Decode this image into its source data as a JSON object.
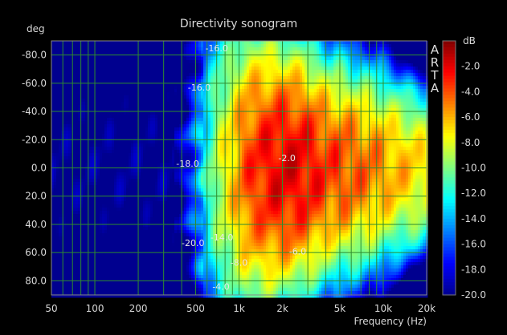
{
  "chart_data": {
    "type": "heatmap",
    "title": "Directivity sonogram",
    "ylabel": "deg",
    "xlabel": "Frequency (Hz)",
    "colorbar_label": "dB",
    "watermark": [
      "A",
      "R",
      "T",
      "A"
    ],
    "x_scale": "log",
    "xlim": [
      50,
      20000
    ],
    "ylim": [
      -90,
      90
    ],
    "y_ticks": [
      "-80.0",
      "-60.0",
      "-40.0",
      "-20.0",
      "0.0",
      "20.0",
      "40.0",
      "60.0",
      "80.0"
    ],
    "y_tick_values": [
      -80,
      -60,
      -40,
      -20,
      0,
      20,
      40,
      60,
      80
    ],
    "x_ticks": [
      "50",
      "100",
      "200",
      "500",
      "1k",
      "2k",
      "5k",
      "10k",
      "20k"
    ],
    "x_tick_values": [
      50,
      100,
      200,
      500,
      1000,
      2000,
      5000,
      10000,
      20000
    ],
    "colorbar_ticks": [
      "-2.0",
      "-4.0",
      "-6.0",
      "-8.0",
      "-10.0",
      "-12.0",
      "-14.0",
      "-16.0",
      "-18.0",
      "-20.0"
    ],
    "colorbar_values": [
      -2,
      -4,
      -6,
      -8,
      -10,
      -12,
      -14,
      -16,
      -18,
      -20
    ],
    "zlim": [
      -20,
      0
    ],
    "colormap": [
      "#00008f",
      "#0000ff",
      "#0080ff",
      "#00ffff",
      "#80ff80",
      "#ffff00",
      "#ff8000",
      "#ff0000",
      "#800000"
    ],
    "grid": true,
    "grid_color": "#2e8b2e",
    "contour_labels": [
      {
        "text": "-16.0",
        "freq": 700,
        "deg": -85
      },
      {
        "text": "-16.0",
        "freq": 530,
        "deg": -57
      },
      {
        "text": "-18.0",
        "freq": 440,
        "deg": -3
      },
      {
        "text": "-2.0",
        "freq": 2150,
        "deg": -7
      },
      {
        "text": "-20.0",
        "freq": 480,
        "deg": 53
      },
      {
        "text": "-14.0",
        "freq": 760,
        "deg": 49
      },
      {
        "text": "-8.0",
        "freq": 1000,
        "deg": 67
      },
      {
        "text": "-6.0",
        "freq": 2550,
        "deg": 59
      },
      {
        "text": "-4.0",
        "freq": 750,
        "deg": 84
      }
    ]
  }
}
